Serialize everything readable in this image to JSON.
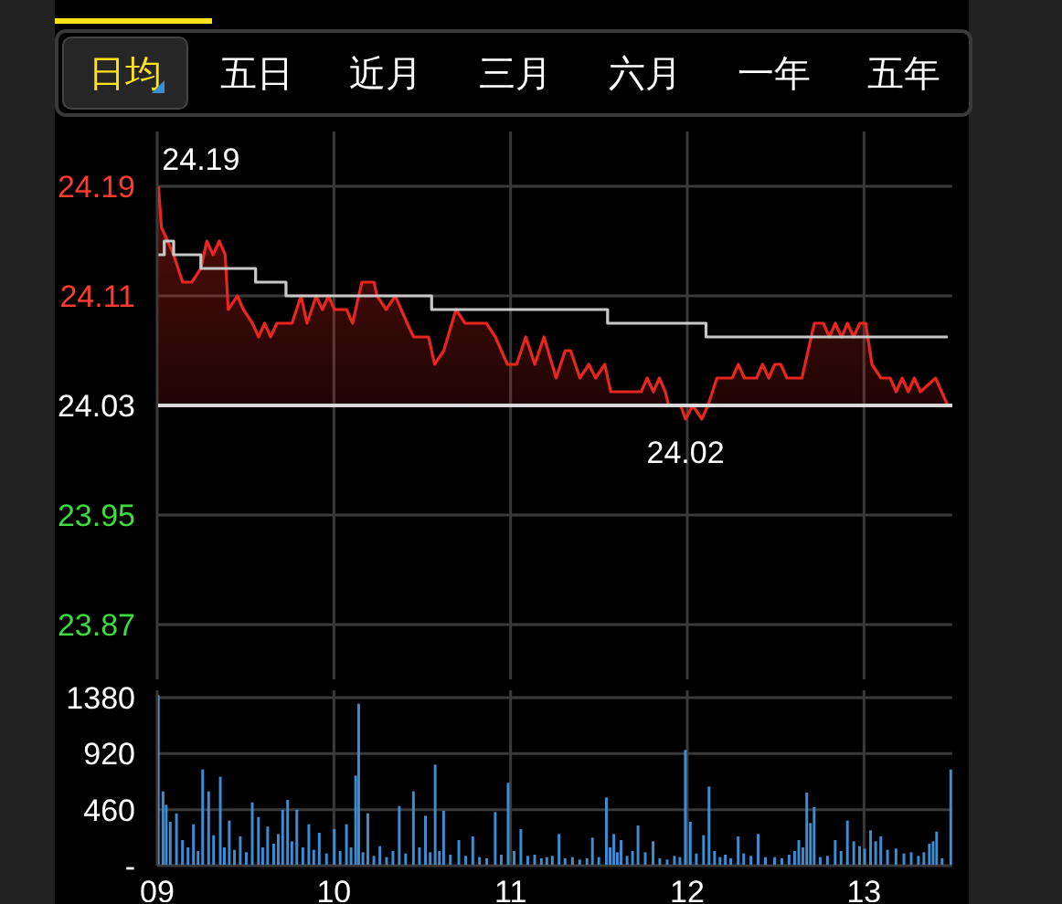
{
  "chart_data": [
    {
      "type": "area",
      "annotations": [
        "日均",
        "五日",
        "近月",
        "三月",
        "六月",
        "一年",
        "五年",
        {
          "text": "24.19",
          "x": 9.007,
          "y": 24.19
        },
        {
          "text": "24.02",
          "x": 11.99,
          "y": 24.02
        }
      ],
      "xlim": [
        9,
        13.5
      ],
      "xticks": [
        9,
        10,
        11,
        12,
        13
      ],
      "ylim": [
        23.83,
        24.23
      ],
      "yticks": [
        23.87,
        23.95,
        24.03,
        24.11,
        24.19
      ],
      "grid": true,
      "tick_labels": "y",
      "ref_lines": [
        {
          "axis": "y",
          "value": 24.03,
          "color": "#d9d9d9"
        }
      ],
      "series": [
        {
          "type": "area",
          "color": "#e8261f",
          "x": [
            9.007,
            9.024,
            9.059,
            9.093,
            9.144,
            9.196,
            9.247,
            9.281,
            9.316,
            9.351,
            9.385,
            9.402,
            9.454,
            9.488,
            9.539,
            9.574,
            9.608,
            9.642,
            9.677,
            9.711,
            9.763,
            9.814,
            9.848,
            9.9,
            9.935,
            9.969,
            10.003,
            10.072,
            10.106,
            10.158,
            10.192,
            10.227,
            10.244,
            10.296,
            10.347,
            10.415,
            10.451,
            10.536,
            10.57,
            10.622,
            10.691,
            10.742,
            10.794,
            10.863,
            10.914,
            10.982,
            11.034,
            11.086,
            11.137,
            11.189,
            11.258,
            11.309,
            11.34,
            11.392,
            11.443,
            11.481,
            11.533,
            11.567,
            11.739,
            11.773,
            11.808,
            11.842,
            11.876,
            11.894,
            11.962,
            11.99,
            12.031,
            12.082,
            12.117,
            12.168,
            12.22,
            12.254,
            12.289,
            12.323,
            12.392,
            12.426,
            12.461,
            12.495,
            12.529,
            12.564,
            12.649,
            12.719,
            12.77,
            12.804,
            12.838,
            12.873,
            12.907,
            12.941,
            12.976,
            13.01,
            13.045,
            13.096,
            13.148,
            13.182,
            13.216,
            13.251,
            13.285,
            13.32,
            13.405,
            13.474
          ],
          "values": [
            24.19,
            24.16,
            24.15,
            24.14,
            24.12,
            24.12,
            24.13,
            24.15,
            24.14,
            24.15,
            24.14,
            24.1,
            24.11,
            24.1,
            24.09,
            24.08,
            24.09,
            24.08,
            24.09,
            24.09,
            24.09,
            24.11,
            24.09,
            24.11,
            24.1,
            24.11,
            24.1,
            24.1,
            24.09,
            24.12,
            24.12,
            24.12,
            24.11,
            24.1,
            24.11,
            24.09,
            24.08,
            24.08,
            24.06,
            24.07,
            24.1,
            24.09,
            24.09,
            24.09,
            24.08,
            24.06,
            24.06,
            24.08,
            24.06,
            24.08,
            24.05,
            24.07,
            24.07,
            24.05,
            24.06,
            24.05,
            24.06,
            24.04,
            24.04,
            24.05,
            24.04,
            24.05,
            24.04,
            24.03,
            24.03,
            24.02,
            24.03,
            24.02,
            24.03,
            24.05,
            24.05,
            24.05,
            24.06,
            24.05,
            24.05,
            24.06,
            24.05,
            24.06,
            24.06,
            24.05,
            24.05,
            24.09,
            24.09,
            24.08,
            24.09,
            24.08,
            24.09,
            24.08,
            24.09,
            24.09,
            24.06,
            24.05,
            24.05,
            24.04,
            24.05,
            24.04,
            24.05,
            24.04,
            24.05,
            24.03
          ]
        },
        {
          "type": "step",
          "color": "#c8c8c8",
          "x": [
            9.007,
            9.04,
            9.093,
            9.247,
            9.557,
            9.729,
            10.553,
            11.549,
            12.106,
            13.474
          ],
          "values": [
            24.14,
            24.15,
            24.14,
            24.13,
            24.12,
            24.11,
            24.1,
            24.09,
            24.08,
            24.08
          ]
        }
      ]
    },
    {
      "type": "bar",
      "xlim": [
        9,
        13.5
      ],
      "xticks": [
        {
          "value": 9,
          "label": "09"
        },
        {
          "value": 10,
          "label": "10"
        },
        {
          "value": 11,
          "label": "11"
        },
        {
          "value": 12,
          "label": "12"
        },
        {
          "value": 13,
          "label": "13"
        }
      ],
      "ylim": [
        0,
        1440
      ],
      "yticks": [
        {
          "value": 0,
          "label": "-"
        },
        460,
        920,
        1380
      ],
      "grid": true,
      "series": [
        {
          "color": "#3b8dd4",
          "x": [
            9.007,
            9.034,
            9.052,
            9.075,
            9.11,
            9.144,
            9.175,
            9.206,
            9.232,
            9.258,
            9.292,
            9.32,
            9.358,
            9.381,
            9.409,
            9.438,
            9.471,
            9.505,
            9.539,
            9.574,
            9.598,
            9.626,
            9.66,
            9.686,
            9.711,
            9.739,
            9.763,
            9.791,
            9.825,
            9.859,
            9.887,
            9.918,
            9.959,
            10.003,
            10.036,
            10.072,
            10.098,
            10.124,
            10.141,
            10.165,
            10.193,
            10.227,
            10.261,
            10.299,
            10.335,
            10.371,
            10.407,
            10.451,
            10.485,
            10.519,
            10.546,
            10.574,
            10.598,
            10.622,
            10.66,
            10.708,
            10.747,
            10.787,
            10.825,
            10.866,
            10.914,
            10.948,
            10.987,
            11.021,
            11.059,
            11.098,
            11.137,
            11.175,
            11.206,
            11.237,
            11.275,
            11.309,
            11.351,
            11.392,
            11.433,
            11.464,
            11.5,
            11.543,
            11.564,
            11.585,
            11.605,
            11.626,
            11.66,
            11.691,
            11.722,
            11.763,
            11.807,
            11.845,
            11.887,
            11.928,
            11.959,
            11.99,
            12.018,
            12.052,
            12.093,
            12.124,
            12.155,
            12.186,
            12.216,
            12.247,
            12.289,
            12.32,
            12.361,
            12.402,
            12.443,
            12.495,
            12.536,
            12.577,
            12.608,
            12.632,
            12.655,
            12.677,
            12.698,
            12.719,
            12.753,
            12.794,
            12.838,
            12.871,
            12.907,
            12.943,
            12.976,
            13.005,
            13.038,
            13.067,
            13.096,
            13.134,
            13.182,
            13.227,
            13.268,
            13.309,
            13.34,
            13.371,
            13.392,
            13.412,
            13.443,
            13.492
          ],
          "values": [
            1400,
            610,
            500,
            360,
            430,
            210,
            150,
            340,
            120,
            790,
            610,
            250,
            730,
            150,
            370,
            130,
            240,
            110,
            520,
            400,
            150,
            320,
            180,
            260,
            460,
            540,
            200,
            460,
            150,
            340,
            130,
            270,
            100,
            300,
            120,
            340,
            150,
            740,
            1330,
            110,
            430,
            80,
            160,
            70,
            120,
            490,
            100,
            610,
            150,
            410,
            110,
            830,
            120,
            450,
            90,
            210,
            80,
            240,
            70,
            60,
            440,
            90,
            680,
            120,
            300,
            80,
            90,
            60,
            70,
            80,
            260,
            60,
            70,
            50,
            60,
            230,
            70,
            560,
            150,
            260,
            110,
            210,
            80,
            120,
            330,
            110,
            200,
            60,
            50,
            80,
            70,
            950,
            360,
            100,
            250,
            650,
            120,
            70,
            90,
            60,
            240,
            100,
            80,
            260,
            70,
            70,
            60,
            90,
            120,
            210,
            150,
            600,
            350,
            480,
            70,
            80,
            210,
            120,
            370,
            200,
            160,
            140,
            290,
            200,
            240,
            130,
            140,
            100,
            110,
            80,
            110,
            180,
            200,
            280,
            60,
            790
          ]
        }
      ]
    }
  ]
}
